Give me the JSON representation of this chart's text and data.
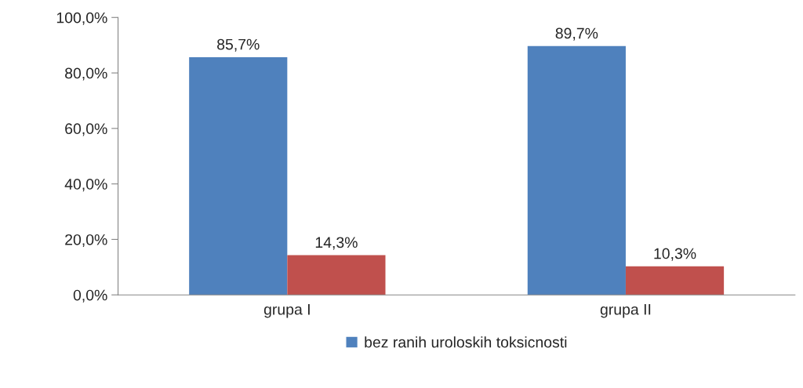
{
  "chart_data": {
    "type": "bar",
    "categories": [
      "grupa I",
      "grupa II"
    ],
    "series": [
      {
        "name": "bez ranih uroloskih toksicnosti",
        "color": "#4f81bd",
        "values": [
          85.7,
          89.7
        ],
        "value_labels": [
          "85,7%",
          "89,7%"
        ]
      },
      {
        "color": "#c0504d",
        "values": [
          14.3,
          10.3
        ],
        "value_labels": [
          "14,3%",
          "10,3%"
        ]
      }
    ],
    "ylim": [
      0,
      100
    ],
    "yticks": [
      {
        "value": 0,
        "label": "0,0%"
      },
      {
        "value": 20,
        "label": "20,0%"
      },
      {
        "value": 40,
        "label": "40,0%"
      },
      {
        "value": 60,
        "label": "60,0%"
      },
      {
        "value": 80,
        "label": "80,0%"
      },
      {
        "value": 100,
        "label": "100,0%"
      }
    ],
    "grid": false,
    "legend": "bottom"
  }
}
